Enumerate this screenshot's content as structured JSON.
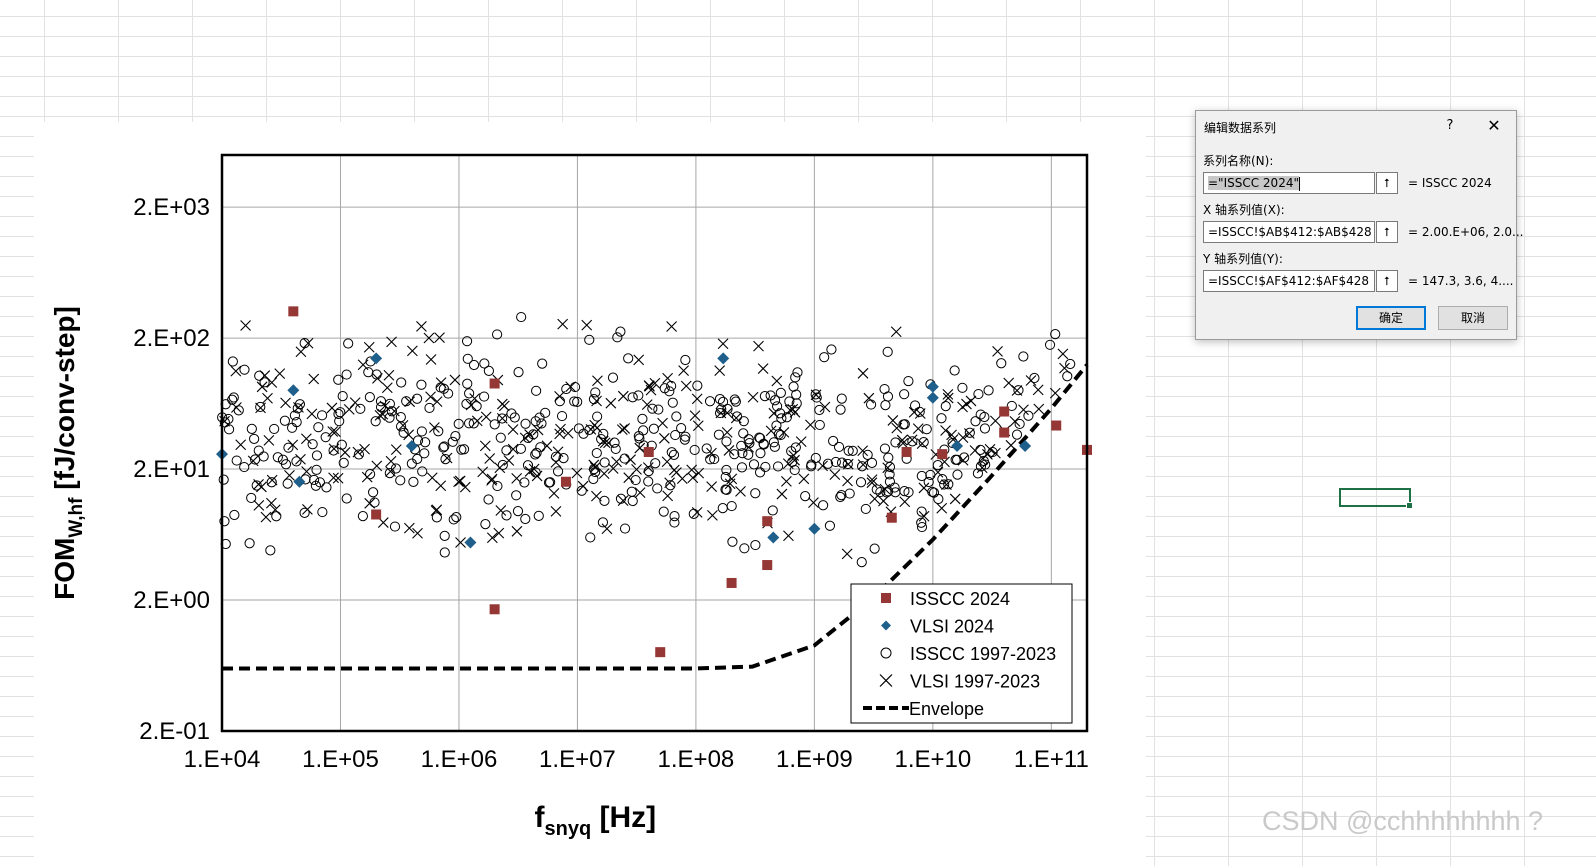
{
  "chart_data": {
    "type": "scatter",
    "xscale": "log",
    "yscale": "log",
    "xlabel_main": "f",
    "xlabel_sub": "snyq",
    "xlabel_unit": " [Hz]",
    "ylabel_main": "FOM",
    "ylabel_sub": "W,hf",
    "ylabel_unit": " [fJ/conv-step]",
    "xlim": [
      10000,
      200000000000
    ],
    "ylim": [
      0.2,
      5000
    ],
    "x_ticks": [
      {
        "value": 10000,
        "label": "1.E+04"
      },
      {
        "value": 100000,
        "label": "1.E+05"
      },
      {
        "value": 1000000,
        "label": "1.E+06"
      },
      {
        "value": 10000000,
        "label": "1.E+07"
      },
      {
        "value": 100000000,
        "label": "1.E+08"
      },
      {
        "value": 1000000000,
        "label": "1.E+09"
      },
      {
        "value": 10000000000,
        "label": "1.E+10"
      },
      {
        "value": 100000000000,
        "label": "1.E+11"
      }
    ],
    "y_ticks": [
      {
        "value": 0.2,
        "label": "2.E-01"
      },
      {
        "value": 2,
        "label": "2.E+00"
      },
      {
        "value": 20,
        "label": "2.E+01"
      },
      {
        "value": 200,
        "label": "2.E+02"
      },
      {
        "value": 2000,
        "label": "2.E+03"
      }
    ],
    "legend": [
      "ISSCC 2024",
      "VLSI 2024",
      "ISSCC 1997-2023",
      "VLSI 1997-2023",
      "Envelope"
    ],
    "legend_position": "bottom-right",
    "series": [
      {
        "name": "ISSCC 2024",
        "marker": "square",
        "color": "#953735",
        "points": [
          [
            40000,
            320
          ],
          [
            200000,
            9
          ],
          [
            2000000,
            1.7
          ],
          [
            2000000,
            90
          ],
          [
            8000000,
            16
          ],
          [
            40000000,
            27
          ],
          [
            50000000,
            0.8
          ],
          [
            200000000,
            2.7
          ],
          [
            400000000,
            8
          ],
          [
            400000000,
            3.7
          ],
          [
            4500000000,
            8.5
          ],
          [
            6000000000,
            27
          ],
          [
            12000000000,
            26
          ],
          [
            40000000000,
            38
          ],
          [
            40000000000,
            55
          ],
          [
            110000000000,
            43
          ],
          [
            200000000000,
            28
          ]
        ]
      },
      {
        "name": "VLSI 2024",
        "marker": "diamond",
        "color": "#1f5f8b",
        "points": [
          [
            10000,
            26
          ],
          [
            40000,
            80
          ],
          [
            45000,
            16
          ],
          [
            200000,
            140
          ],
          [
            400000,
            30
          ],
          [
            1250000,
            5.5
          ],
          [
            170000000,
            140
          ],
          [
            450000000,
            6
          ],
          [
            1000000000,
            7
          ],
          [
            10000000000,
            85
          ],
          [
            10000000000,
            70
          ],
          [
            16000000000,
            30
          ],
          [
            60000000000,
            30
          ]
        ]
      },
      {
        "name": "ISSCC 1997-2023",
        "marker": "circle",
        "color": "#000000",
        "points_generated": "approximately 420 scattered points"
      },
      {
        "name": "VLSI 1997-2023",
        "marker": "x",
        "color": "#000000",
        "points_generated": "approximately 280 scattered points"
      },
      {
        "name": "Envelope",
        "marker": "dashed-line",
        "color": "#000000",
        "points": [
          [
            10000,
            0.6
          ],
          [
            100000,
            0.6
          ],
          [
            1000000,
            0.6
          ],
          [
            100000000,
            0.6
          ],
          [
            300000000,
            0.62
          ],
          [
            1000000000,
            0.9
          ],
          [
            3000000000,
            2
          ],
          [
            10000000000,
            5.8
          ],
          [
            30000000000,
            17
          ],
          [
            100000000000,
            58
          ],
          [
            200000000000,
            125
          ]
        ]
      }
    ]
  },
  "dialog": {
    "title": "编辑数据系列",
    "help": "?",
    "close": "✕",
    "series_name_label": "系列名称(N):",
    "series_name_value": "=\"ISSCC 2024\"",
    "series_name_result": "= ISSCC 2024",
    "x_values_label": "X 轴系列值(X):",
    "x_values_value": "=ISSCC!$AB$412:$AB$428",
    "x_values_result": "= 2.00.E+06, 2.0...",
    "y_values_label": "Y 轴系列值(Y):",
    "y_values_value": "=ISSCC!$AF$412:$AF$428",
    "y_values_result": "= 147.3, 3.6, 4....",
    "collapse_glyph": "⭡",
    "ok_label": "确定",
    "cancel_label": "取消"
  },
  "watermark": "CSDN @cchhhhhhhh ?"
}
